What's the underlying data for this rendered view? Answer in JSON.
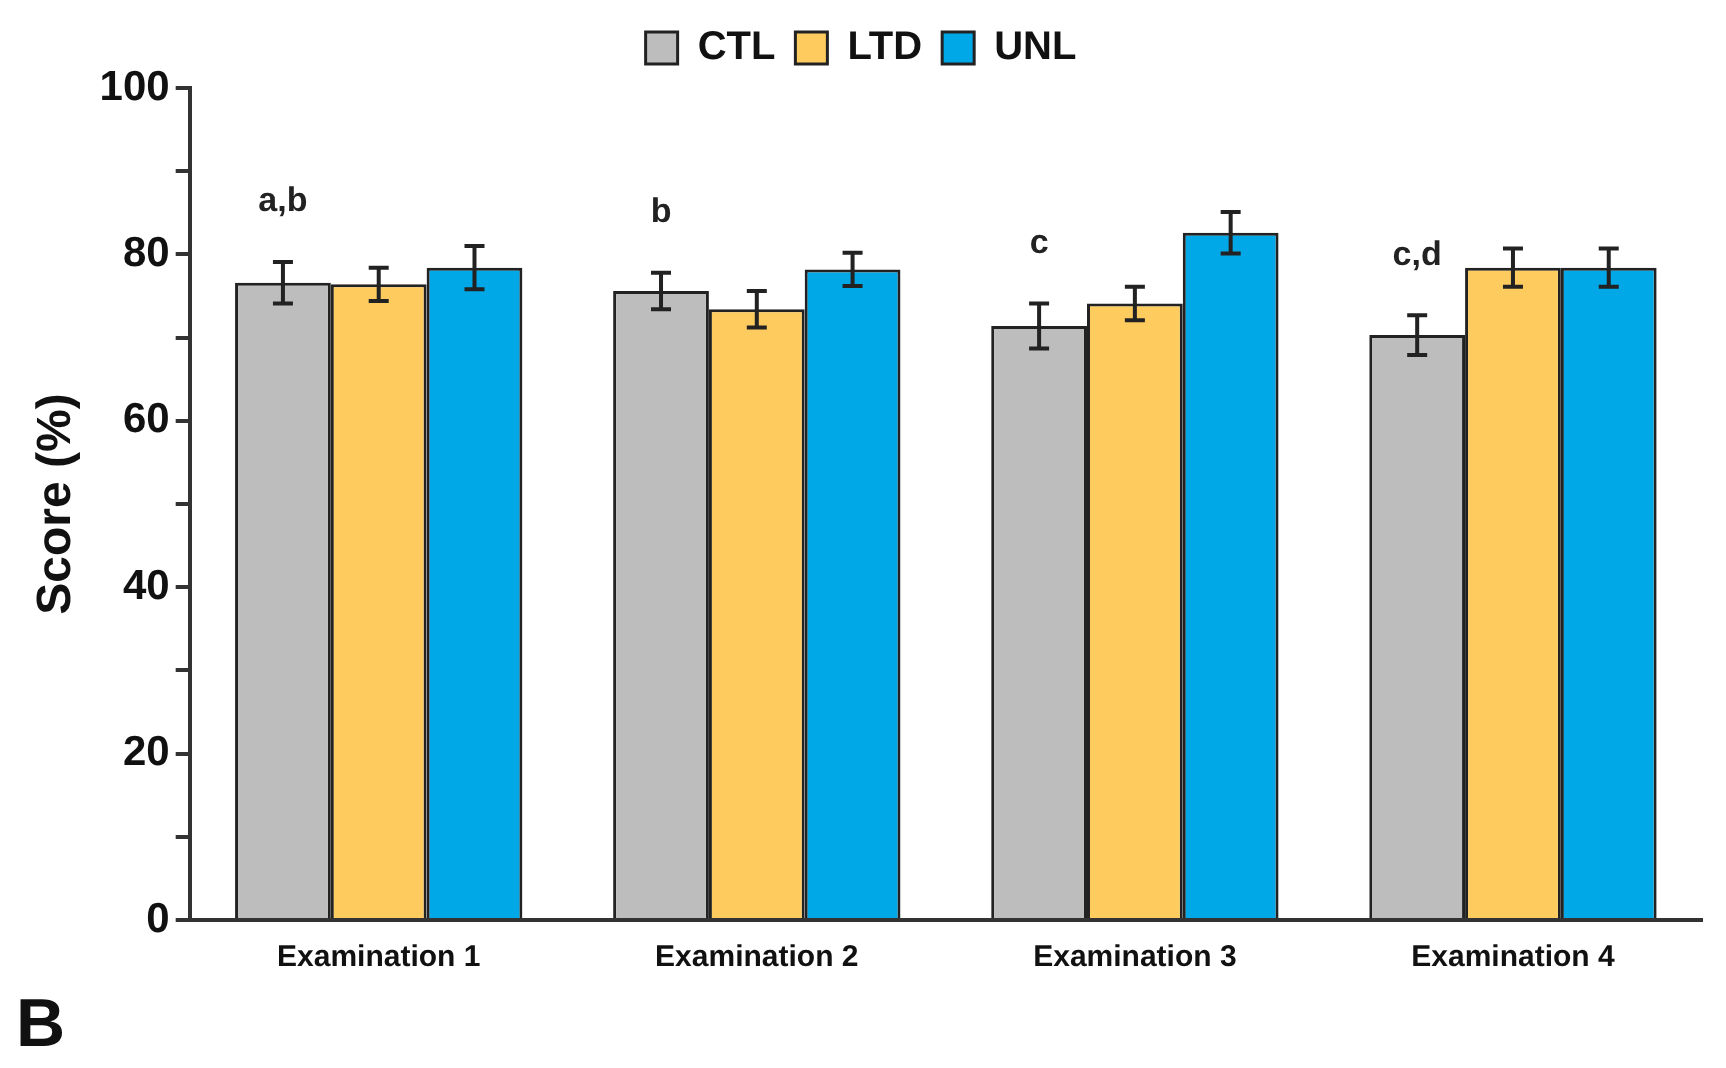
{
  "chart_data": {
    "type": "bar",
    "ylabel": "Score (%)",
    "categories": [
      "Examination 1",
      "Examination 2",
      "Examination 3",
      "Examination 4"
    ],
    "series": [
      {
        "name": "CTL",
        "color": "#bdbdbd",
        "values": [
          76.6,
          75.6,
          71.4,
          70.3
        ],
        "errors": [
          2.5,
          2.2,
          2.7,
          2.4
        ]
      },
      {
        "name": "LTD",
        "color": "#fecb5e",
        "values": [
          76.4,
          73.4,
          74.1,
          78.4
        ],
        "errors": [
          2,
          2.2,
          2,
          2.3
        ]
      },
      {
        "name": "UNL",
        "color": "#00a8e8",
        "values": [
          78.4,
          78.2,
          82.6,
          78.4
        ],
        "errors": [
          2.6,
          2,
          2.5,
          2.3
        ]
      }
    ],
    "ylim": [
      0,
      100
    ],
    "yticks": [
      0,
      {
        "value": 10,
        "label": null
      },
      20,
      {
        "value": 30,
        "label": null
      },
      40,
      {
        "value": 50,
        "label": null
      },
      60,
      {
        "value": 70,
        "label": null
      },
      80,
      {
        "value": 90,
        "label": null
      },
      100
    ],
    "grid": false,
    "legend": "top",
    "annotations": [
      "a,b",
      "b",
      "c",
      "c,d",
      "B"
    ]
  }
}
